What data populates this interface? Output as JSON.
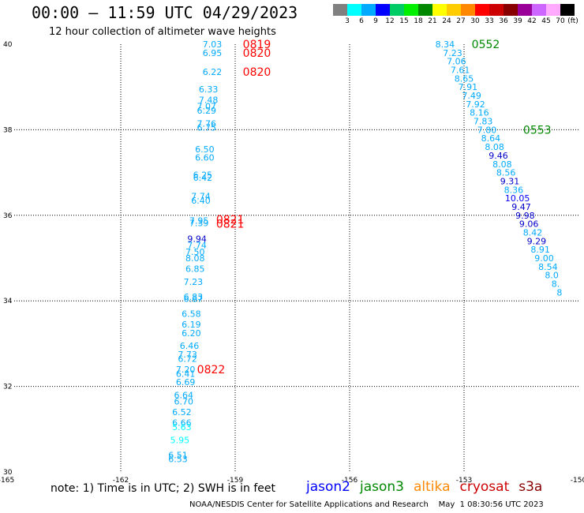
{
  "header": {
    "title": "00:00 – 11:59 UTC 04/29/2023",
    "subtitle": "12 hour collection of altimeter wave heights"
  },
  "colorbar": {
    "unit_label": "(ft)",
    "ticks": [
      "3",
      "6",
      "9",
      "12",
      "15",
      "18",
      "21",
      "24",
      "27",
      "30",
      "33",
      "36",
      "39",
      "42",
      "45",
      "70"
    ],
    "colors": [
      "#808080",
      "#00ffff",
      "#00aaff",
      "#0000ff",
      "#00cc66",
      "#00ee00",
      "#008800",
      "#ffff00",
      "#ffcc00",
      "#ff8800",
      "#ff0000",
      "#cc0000",
      "#880000",
      "#990099",
      "#cc66ff",
      "#ffaaff",
      "#000000"
    ]
  },
  "axes": {
    "x_ticks": [
      "-165",
      "-162",
      "-159",
      "-156",
      "-153",
      "-150"
    ],
    "y_ticks": [
      "40",
      "38",
      "36",
      "34",
      "32",
      "30"
    ]
  },
  "footer": {
    "note": "note:  1) Time is in UTC;  2) SWH is in feet",
    "legend": [
      {
        "name": "jason2",
        "color": "#0000ff"
      },
      {
        "name": "jason3",
        "color": "#008800"
      },
      {
        "name": "altika",
        "color": "#ff8800"
      },
      {
        "name": "cryosat",
        "color": "#cc0000"
      },
      {
        "name": "s3a",
        "color": "#880000"
      }
    ],
    "credit": "NOAA/NESDIS Center for Satellite Applications and Research    May  1 08:30:56 UTC 2023"
  },
  "chart_data": {
    "type": "scatter",
    "x_range": [
      -165,
      -150
    ],
    "y_range": [
      30,
      40
    ],
    "grid": true,
    "units": "ft",
    "track_west": {
      "time_labels": [
        {
          "text": "0819",
          "lon": -158.8,
          "lat": 40.0,
          "color": "#ff0000"
        },
        {
          "text": "0820",
          "lon": -158.8,
          "lat": 39.8,
          "color": "#ff0000"
        },
        {
          "text": "0820",
          "lon": -158.8,
          "lat": 39.35,
          "color": "#ff0000"
        },
        {
          "text": "0821",
          "lon": -159.5,
          "lat": 35.9,
          "color": "#ff0000"
        },
        {
          "text": "0821",
          "lon": -159.5,
          "lat": 35.8,
          "color": "#ff0000"
        },
        {
          "text": "0822",
          "lon": -160.0,
          "lat": 32.4,
          "color": "#ff0000"
        }
      ],
      "points": [
        {
          "lon": -159.6,
          "lat": 40.0,
          "swh": "7.03",
          "color": "#00aaff"
        },
        {
          "lon": -159.6,
          "lat": 39.8,
          "swh": "6.95",
          "color": "#00aaff"
        },
        {
          "lon": -159.6,
          "lat": 39.35,
          "swh": "6.22",
          "color": "#00aaff"
        },
        {
          "lon": -159.7,
          "lat": 38.95,
          "swh": "6.33",
          "color": "#00aaff"
        },
        {
          "lon": -159.7,
          "lat": 38.7,
          "swh": "7.48",
          "color": "#00aaff"
        },
        {
          "lon": -159.75,
          "lat": 38.55,
          "swh": "7.07",
          "color": "#00aaff"
        },
        {
          "lon": -159.75,
          "lat": 38.45,
          "swh": "6.29",
          "color": "#00aaff"
        },
        {
          "lon": -159.75,
          "lat": 38.15,
          "swh": "7.76",
          "color": "#00aaff"
        },
        {
          "lon": -159.75,
          "lat": 38.05,
          "swh": "6.75",
          "color": "#00aaff"
        },
        {
          "lon": -159.8,
          "lat": 37.55,
          "swh": "6.50",
          "color": "#00aaff"
        },
        {
          "lon": -159.8,
          "lat": 37.35,
          "swh": "6.60",
          "color": "#00aaff"
        },
        {
          "lon": -159.85,
          "lat": 36.95,
          "swh": "6.25",
          "color": "#00aaff"
        },
        {
          "lon": -159.85,
          "lat": 36.88,
          "swh": "6.42",
          "color": "#00aaff"
        },
        {
          "lon": -159.9,
          "lat": 36.45,
          "swh": "7.74",
          "color": "#00aaff"
        },
        {
          "lon": -159.9,
          "lat": 36.35,
          "swh": "6.40",
          "color": "#00aaff"
        },
        {
          "lon": -159.95,
          "lat": 35.88,
          "swh": "7.95",
          "color": "#00aaff"
        },
        {
          "lon": -159.95,
          "lat": 35.82,
          "swh": "7.39",
          "color": "#00aaff"
        },
        {
          "lon": -160.0,
          "lat": 35.45,
          "swh": "9.94",
          "color": "#0000cc"
        },
        {
          "lon": -160.0,
          "lat": 35.3,
          "swh": "7.74",
          "color": "#00aaff"
        },
        {
          "lon": -160.05,
          "lat": 35.15,
          "swh": "7.50",
          "color": "#00aaff"
        },
        {
          "lon": -160.05,
          "lat": 35.0,
          "swh": "8.08",
          "color": "#00aaff"
        },
        {
          "lon": -160.05,
          "lat": 34.75,
          "swh": "6.85",
          "color": "#00aaff"
        },
        {
          "lon": -160.1,
          "lat": 34.45,
          "swh": "7.23",
          "color": "#00aaff"
        },
        {
          "lon": -160.1,
          "lat": 34.1,
          "swh": "6.83",
          "color": "#00aaff"
        },
        {
          "lon": -160.1,
          "lat": 34.05,
          "swh": "6.67",
          "color": "#00aaff"
        },
        {
          "lon": -160.15,
          "lat": 33.7,
          "swh": "6.58",
          "color": "#00aaff"
        },
        {
          "lon": -160.15,
          "lat": 33.45,
          "swh": "6.19",
          "color": "#00aaff"
        },
        {
          "lon": -160.15,
          "lat": 33.25,
          "swh": "6.20",
          "color": "#00aaff"
        },
        {
          "lon": -160.2,
          "lat": 32.95,
          "swh": "6.46",
          "color": "#00aaff"
        },
        {
          "lon": -160.25,
          "lat": 32.75,
          "swh": "7.73",
          "color": "#00aaff"
        },
        {
          "lon": -160.25,
          "lat": 32.65,
          "swh": "6.72",
          "color": "#00aaff"
        },
        {
          "lon": -160.3,
          "lat": 32.4,
          "swh": "7.20",
          "color": "#00aaff"
        },
        {
          "lon": -160.3,
          "lat": 32.3,
          "swh": "6.41",
          "color": "#00aaff"
        },
        {
          "lon": -160.3,
          "lat": 32.1,
          "swh": "6.69",
          "color": "#00aaff"
        },
        {
          "lon": -160.35,
          "lat": 31.8,
          "swh": "6.64",
          "color": "#00aaff"
        },
        {
          "lon": -160.35,
          "lat": 31.65,
          "swh": "6.70",
          "color": "#00aaff"
        },
        {
          "lon": -160.4,
          "lat": 31.4,
          "swh": "6.52",
          "color": "#00aaff"
        },
        {
          "lon": -160.4,
          "lat": 31.15,
          "swh": "6.66",
          "color": "#00aaff"
        },
        {
          "lon": -160.4,
          "lat": 31.05,
          "swh": "5.63",
          "color": "#00ffff"
        },
        {
          "lon": -160.45,
          "lat": 30.75,
          "swh": "5.95",
          "color": "#00ffff"
        },
        {
          "lon": -160.5,
          "lat": 30.4,
          "swh": "6.51",
          "color": "#00aaff"
        },
        {
          "lon": -160.5,
          "lat": 30.3,
          "swh": "6.53",
          "color": "#00aaff"
        }
      ]
    },
    "track_east": {
      "time_labels": [
        {
          "text": "0552",
          "lon": -152.8,
          "lat": 40.0,
          "color": "#008800"
        },
        {
          "text": "0553",
          "lon": -151.45,
          "lat": 38.0,
          "color": "#008800"
        }
      ],
      "points": [
        {
          "lon": -153.5,
          "lat": 40.0,
          "swh": "8.34",
          "color": "#00aaff"
        },
        {
          "lon": -153.3,
          "lat": 39.8,
          "swh": "7.23",
          "color": "#00aaff"
        },
        {
          "lon": -153.2,
          "lat": 39.6,
          "swh": "7.06",
          "color": "#00aaff"
        },
        {
          "lon": -153.1,
          "lat": 39.4,
          "swh": "7.61",
          "color": "#00aaff"
        },
        {
          "lon": -153.0,
          "lat": 39.2,
          "swh": "8.65",
          "color": "#00aaff"
        },
        {
          "lon": -152.9,
          "lat": 39.0,
          "swh": "7.91",
          "color": "#00aaff"
        },
        {
          "lon": -152.8,
          "lat": 38.8,
          "swh": "7.49",
          "color": "#00aaff"
        },
        {
          "lon": -152.7,
          "lat": 38.6,
          "swh": "7.92",
          "color": "#00aaff"
        },
        {
          "lon": -152.6,
          "lat": 38.4,
          "swh": "8.16",
          "color": "#00aaff"
        },
        {
          "lon": -152.5,
          "lat": 38.2,
          "swh": "7.83",
          "color": "#00aaff"
        },
        {
          "lon": -152.4,
          "lat": 38.0,
          "swh": "7.80",
          "color": "#00aaff"
        },
        {
          "lon": -152.3,
          "lat": 37.8,
          "swh": "8.64",
          "color": "#00aaff"
        },
        {
          "lon": -152.2,
          "lat": 37.6,
          "swh": "8.08",
          "color": "#00aaff"
        },
        {
          "lon": -152.1,
          "lat": 37.4,
          "swh": "9.46",
          "color": "#0000cc"
        },
        {
          "lon": -152.0,
          "lat": 37.2,
          "swh": "8.08",
          "color": "#00aaff"
        },
        {
          "lon": -151.9,
          "lat": 37.0,
          "swh": "8.56",
          "color": "#00aaff"
        },
        {
          "lon": -151.8,
          "lat": 36.8,
          "swh": "9.31",
          "color": "#0000cc"
        },
        {
          "lon": -151.7,
          "lat": 36.6,
          "swh": "8.36",
          "color": "#00aaff"
        },
        {
          "lon": -151.6,
          "lat": 36.4,
          "swh": "10.05",
          "color": "#0000ff"
        },
        {
          "lon": -151.5,
          "lat": 36.2,
          "swh": "9.47",
          "color": "#0000cc"
        },
        {
          "lon": -151.4,
          "lat": 36.0,
          "swh": "9.98",
          "color": "#0000cc"
        },
        {
          "lon": -151.3,
          "lat": 35.8,
          "swh": "9.06",
          "color": "#0000cc"
        },
        {
          "lon": -151.2,
          "lat": 35.6,
          "swh": "8.42",
          "color": "#00aaff"
        },
        {
          "lon": -151.1,
          "lat": 35.4,
          "swh": "9.29",
          "color": "#0000cc"
        },
        {
          "lon": -151.0,
          "lat": 35.2,
          "swh": "8.91",
          "color": "#00aaff"
        },
        {
          "lon": -150.9,
          "lat": 35.0,
          "swh": "9.00",
          "color": "#00aaff"
        },
        {
          "lon": -150.8,
          "lat": 34.8,
          "swh": "8.54",
          "color": "#00aaff"
        },
        {
          "lon": -150.7,
          "lat": 34.6,
          "swh": "8.0",
          "color": "#00aaff"
        },
        {
          "lon": -150.6,
          "lat": 34.4,
          "swh": "8.",
          "color": "#00aaff"
        },
        {
          "lon": -150.5,
          "lat": 34.2,
          "swh": "8",
          "color": "#00aaff"
        }
      ]
    }
  }
}
